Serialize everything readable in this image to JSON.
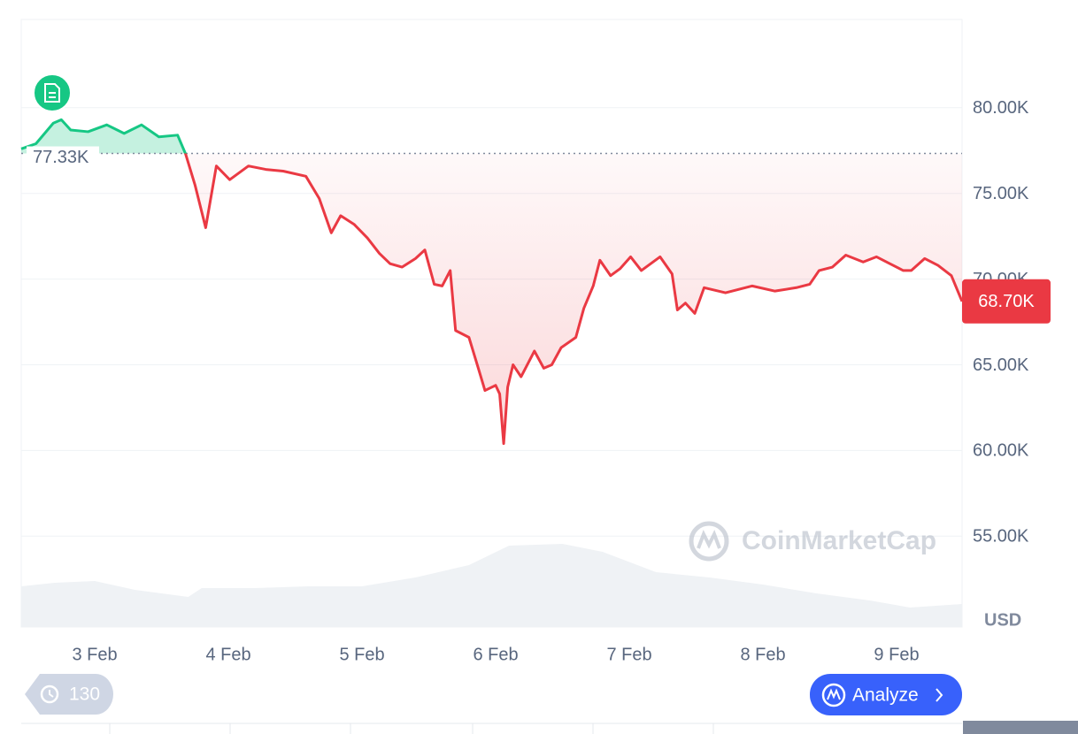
{
  "chart_data": {
    "type": "line",
    "x": [
      2.45,
      2.56,
      2.69,
      2.75,
      2.82,
      2.95,
      3.09,
      3.22,
      3.35,
      3.48,
      3.62,
      3.68,
      3.75,
      3.83,
      3.91,
      4.01,
      4.15,
      4.28,
      4.41,
      4.58,
      4.68,
      4.77,
      4.84,
      4.94,
      5.04,
      5.13,
      5.21,
      5.3,
      5.4,
      5.47,
      5.54,
      5.6,
      5.66,
      5.7,
      5.8,
      5.87,
      5.92,
      6.0,
      6.03,
      6.06,
      6.09,
      6.13,
      6.19,
      6.29,
      6.36,
      6.42,
      6.49,
      6.6,
      6.66,
      6.73,
      6.78,
      6.86,
      6.93,
      7.01,
      7.09,
      7.23,
      7.32,
      7.36,
      7.42,
      7.49,
      7.56,
      7.72,
      7.92,
      8.09,
      8.25,
      8.35,
      8.42,
      8.52,
      8.62,
      8.75,
      8.85,
      8.95,
      9.05,
      9.11,
      9.21,
      9.31,
      9.41,
      9.49
    ],
    "series": [
      {
        "color": "#ea3943",
        "above_color": "#16c784",
        "values": [
          77600,
          77900,
          79100,
          79300,
          78700,
          78600,
          79000,
          78500,
          79000,
          78300,
          78400,
          77300,
          75500,
          73000,
          76600,
          75800,
          76600,
          76400,
          76300,
          76000,
          74700,
          72700,
          73700,
          73200,
          72400,
          71500,
          70900,
          70700,
          71200,
          71700,
          69700,
          69600,
          70500,
          67000,
          66600,
          64800,
          63500,
          63800,
          63300,
          60400,
          63700,
          65000,
          64300,
          65800,
          64800,
          65000,
          66000,
          66600,
          68300,
          69600,
          71100,
          70200,
          70600,
          71300,
          70500,
          71300,
          70300,
          68200,
          68600,
          68000,
          69500,
          69200,
          69600,
          69300,
          69500,
          69700,
          70500,
          70700,
          71400,
          71000,
          71300,
          70900,
          70500,
          70500,
          71200,
          70800,
          70200,
          68700
        ]
      }
    ],
    "reference": {
      "value": 77330,
      "label": "77.33K"
    },
    "last": {
      "value": 68700,
      "label": "68.70K"
    },
    "volume": {
      "color": "#eff2f5",
      "x": [
        2.45,
        2.7,
        3.0,
        3.3,
        3.6,
        3.7,
        3.8,
        4.2,
        4.6,
        5.0,
        5.4,
        5.8,
        6.1,
        6.5,
        6.8,
        7.2,
        7.6,
        8.0,
        8.4,
        8.8,
        9.1,
        9.49
      ],
      "values": [
        46,
        50,
        52,
        42,
        36,
        34,
        44,
        44,
        46,
        46,
        56,
        70,
        92,
        94,
        85,
        62,
        56,
        48,
        38,
        30,
        22,
        26
      ]
    },
    "xlim": [
      2.45,
      9.49
    ],
    "xticks": [
      {
        "value": 3,
        "label": "3 Feb"
      },
      {
        "value": 4,
        "label": "4 Feb"
      },
      {
        "value": 5,
        "label": "5 Feb"
      },
      {
        "value": 6,
        "label": "6 Feb"
      },
      {
        "value": 7,
        "label": "7 Feb"
      },
      {
        "value": 8,
        "label": "8 Feb"
      },
      {
        "value": 9,
        "label": "9 Feb"
      }
    ],
    "ylim": [
      49700,
      85150
    ],
    "yticks": [
      {
        "value": 55000,
        "label": "55.00K"
      },
      {
        "value": 60000,
        "label": "60.00K"
      },
      {
        "value": 65000,
        "label": "65.00K"
      },
      {
        "value": 70000,
        "label": "70.00K"
      },
      {
        "value": 75000,
        "label": "75.00K"
      },
      {
        "value": 80000,
        "label": "80.00K"
      }
    ],
    "y_label": "USD",
    "grid": true
  },
  "ui": {
    "watermark": "CoinMarketCap",
    "history_count": "130",
    "analyze": "Analyze"
  }
}
